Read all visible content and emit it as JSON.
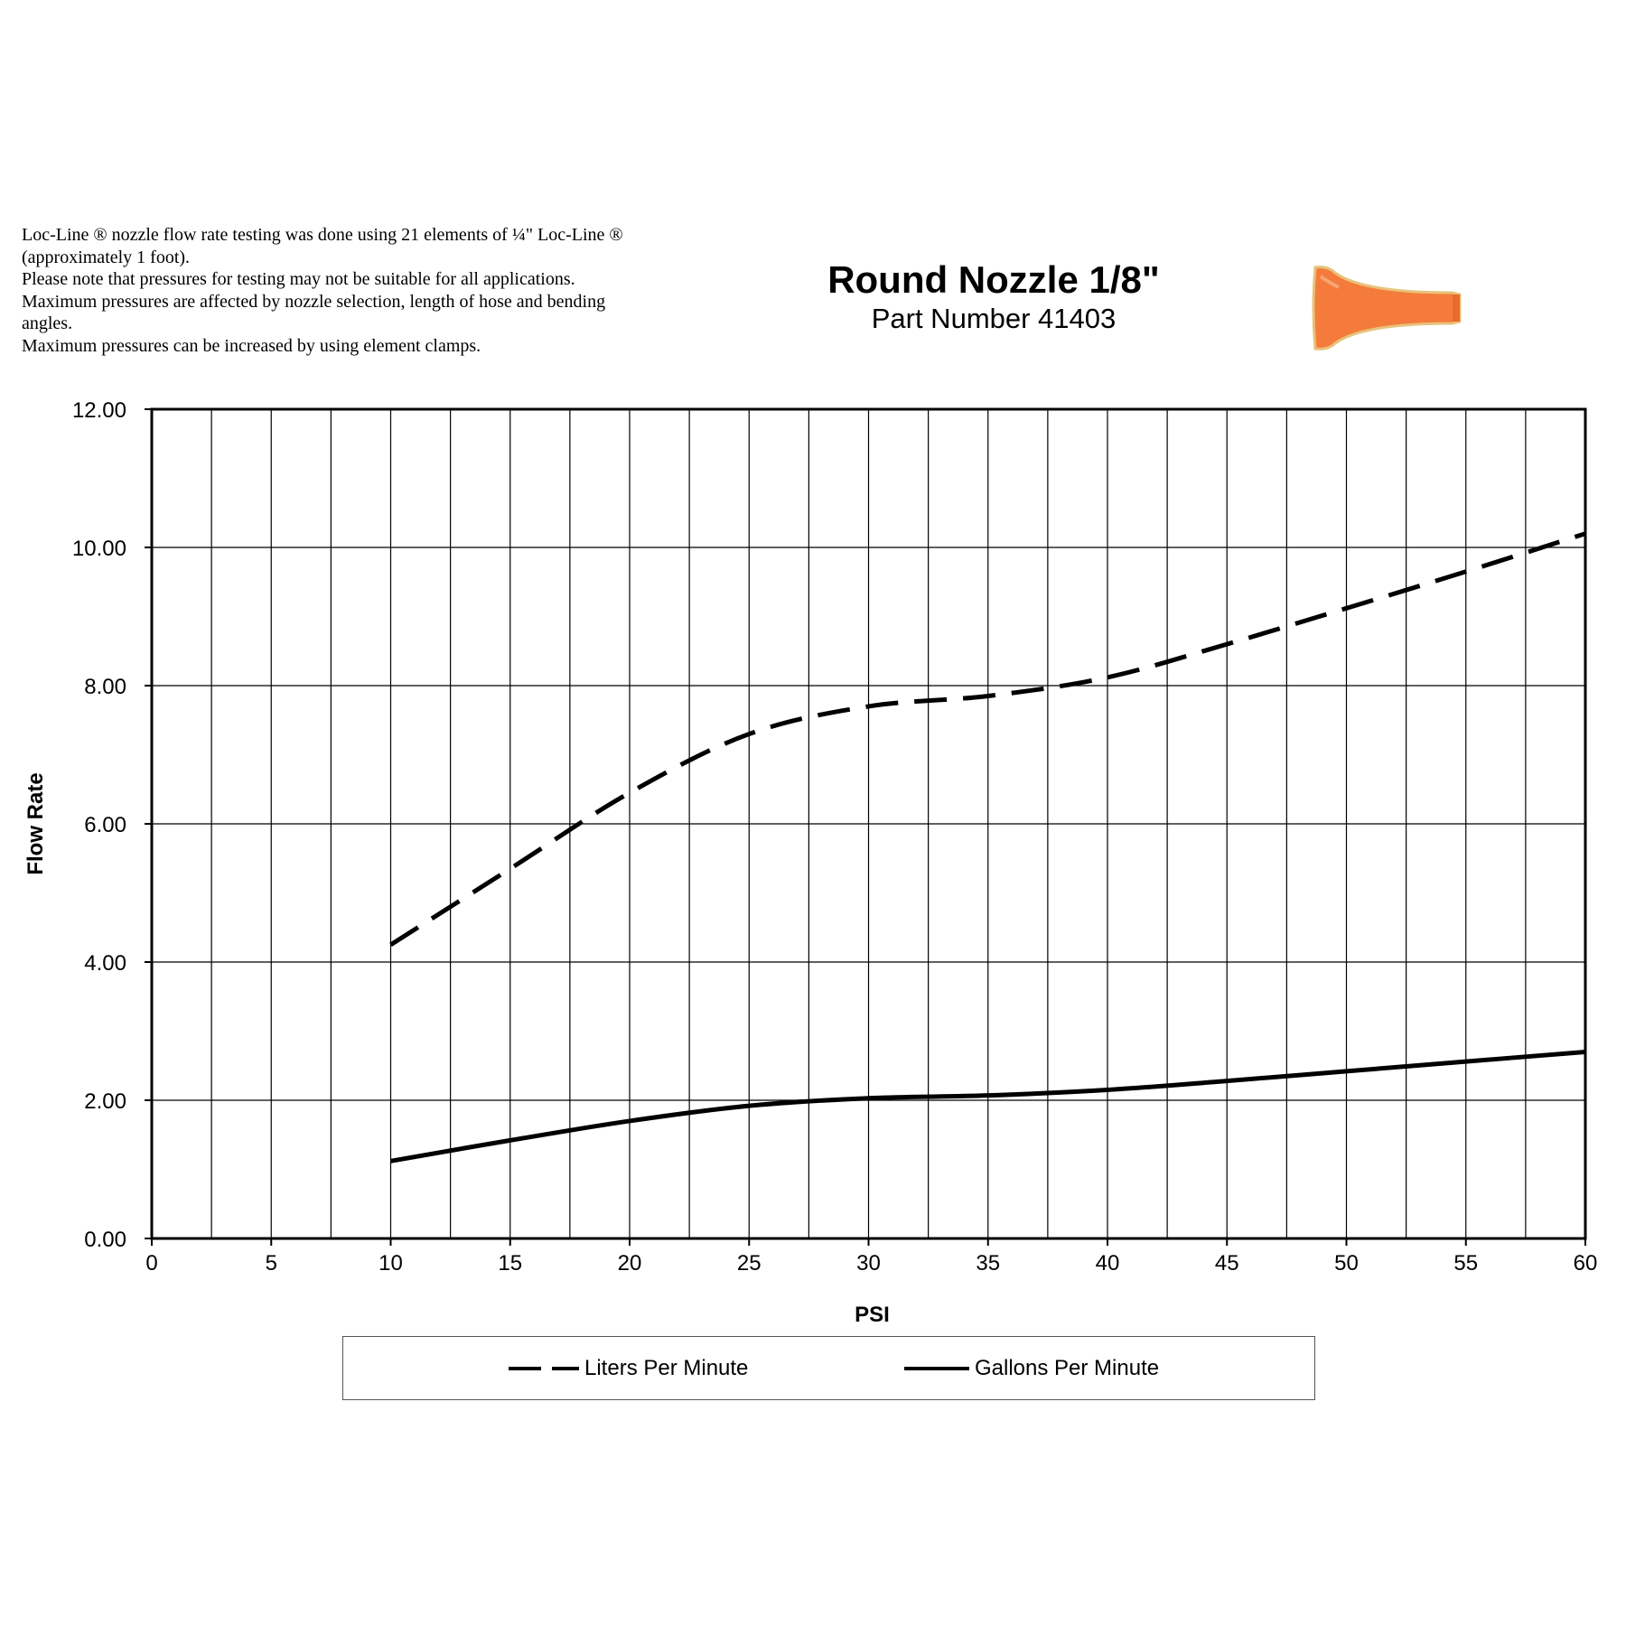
{
  "notes": [
    "Loc-Line ® nozzle flow rate testing was done using 21 elements of ¼\" Loc-Line ®",
    "(approximately 1 foot).",
    "Please note that pressures for testing may not be suitable for all applications.",
    "Maximum pressures are affected by nozzle selection, length of hose and bending",
    "angles.",
    "Maximum pressures can be increased by using element clamps."
  ],
  "title": "Round Nozzle 1/8\"",
  "subtitle": "Part Number 41403",
  "nozzle_image": {
    "icon": "orange-round-nozzle-icon",
    "color": "#F47B3C"
  },
  "chart_data": {
    "type": "line",
    "title": "Round Nozzle 1/8\"",
    "subtitle": "Part Number 41403",
    "xlabel": "PSI",
    "ylabel": "Flow Rate",
    "xlim": [
      0,
      60
    ],
    "ylim": [
      0,
      12
    ],
    "x_ticks": [
      0,
      5,
      10,
      15,
      20,
      25,
      30,
      35,
      40,
      45,
      50,
      55,
      60
    ],
    "x_gridlines_every": 2.5,
    "y_ticks": [
      "0.00",
      "2.00",
      "4.00",
      "6.00",
      "8.00",
      "10.00",
      "12.00"
    ],
    "grid": true,
    "legend_position": "bottom",
    "series": [
      {
        "name": "Liters Per Minute",
        "style": "dashed",
        "color": "#000000",
        "x": [
          10,
          15,
          20,
          25,
          30,
          35,
          40,
          45,
          50,
          55,
          60
        ],
        "y": [
          4.25,
          5.35,
          6.45,
          7.3,
          7.7,
          7.85,
          8.12,
          8.6,
          9.12,
          9.65,
          10.2
        ]
      },
      {
        "name": "Gallons Per Minute",
        "style": "solid",
        "color": "#000000",
        "x": [
          10,
          15,
          20,
          25,
          30,
          35,
          40,
          45,
          50,
          55,
          60
        ],
        "y": [
          1.12,
          1.42,
          1.7,
          1.92,
          2.03,
          2.07,
          2.15,
          2.28,
          2.42,
          2.56,
          2.7
        ]
      }
    ]
  }
}
